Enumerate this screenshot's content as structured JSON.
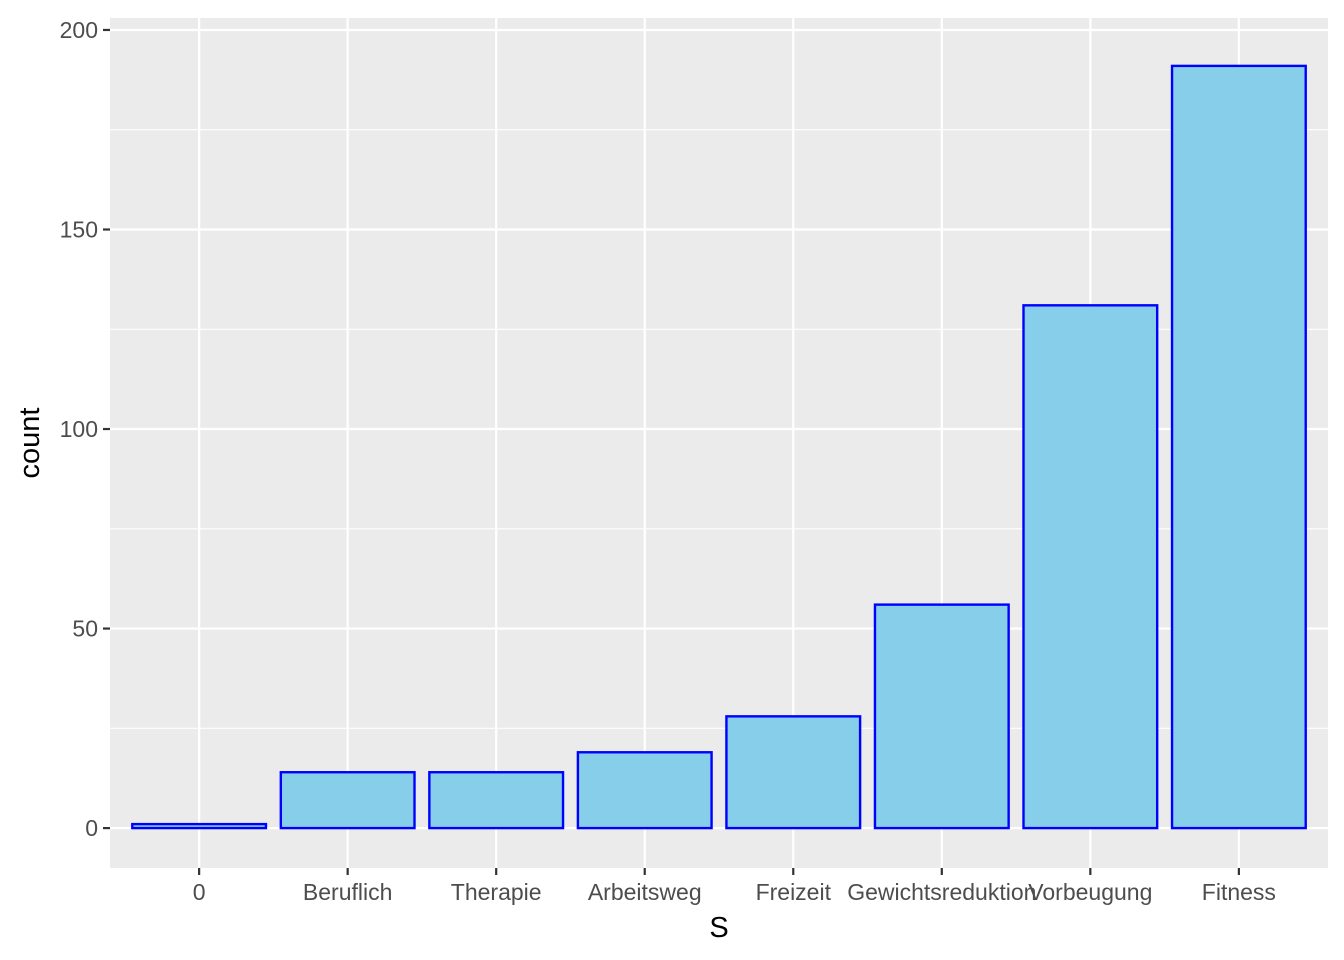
{
  "chart_data": {
    "type": "bar",
    "xlabel": "S",
    "ylabel": "count",
    "categories": [
      "0",
      "Beruflich",
      "Therapie",
      "Arbeitsweg",
      "Freizeit",
      "Gewichtsreduktion",
      "Vorbeugung",
      "Fitness"
    ],
    "values": [
      1,
      14,
      14,
      19,
      28,
      56,
      131,
      191
    ],
    "ylim": [
      -10,
      203
    ],
    "yticks": [
      0,
      50,
      100,
      150,
      200
    ],
    "grid": true,
    "legend": "none",
    "colors": {
      "bar_fill": "#87CEEB",
      "bar_outline": "#0000FF",
      "panel_background": "#EBEBEB",
      "grid": "#FFFFFF"
    }
  }
}
